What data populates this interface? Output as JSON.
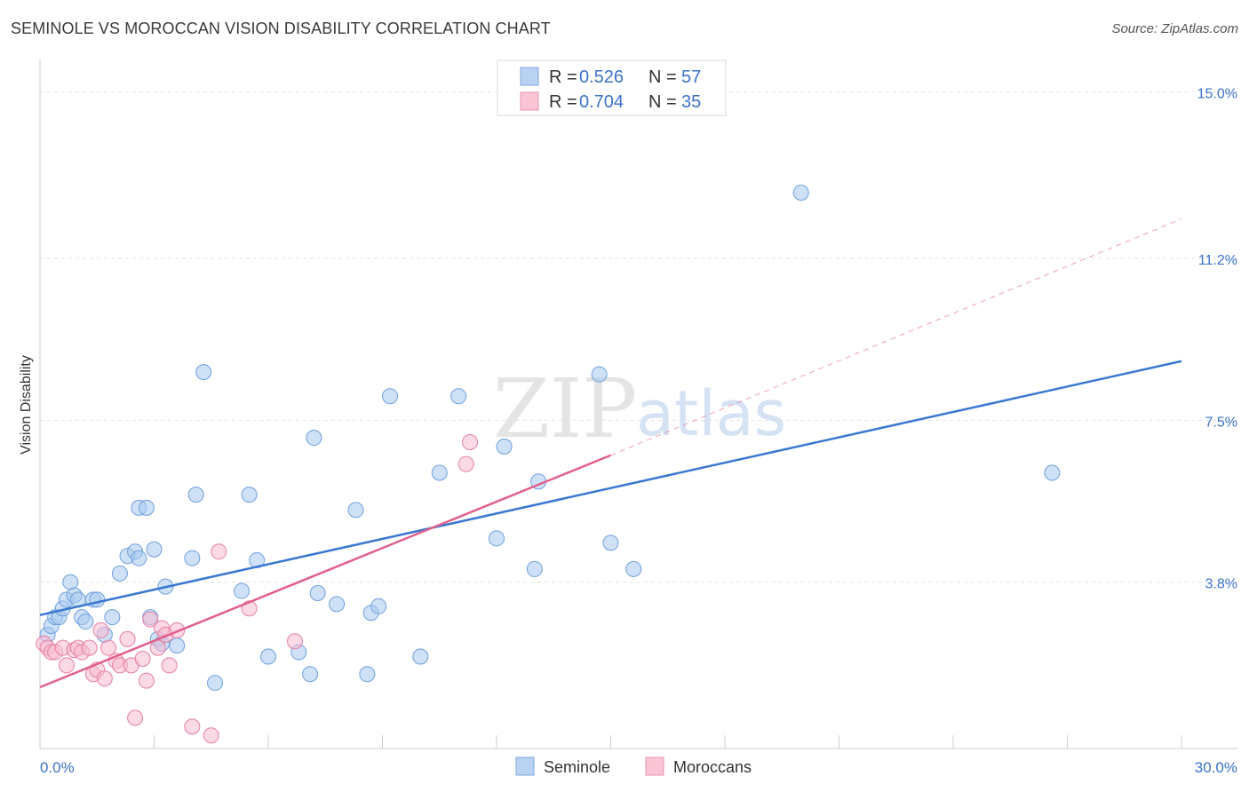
{
  "title": "SEMINOLE VS MOROCCAN VISION DISABILITY CORRELATION CHART",
  "source": "Source: ZipAtlas.com",
  "watermark": {
    "zip": "ZIP",
    "atlas": "atlas"
  },
  "chart_data": {
    "type": "scatter",
    "ylabel": "Vision Disability",
    "xlim": [
      0,
      30
    ],
    "ylim": [
      0,
      15.5
    ],
    "x_tick_labels": {
      "min": "0.0%",
      "max": "30.0%"
    },
    "y_ticks": [
      {
        "value": 3.8,
        "label": "3.8%"
      },
      {
        "value": 7.5,
        "label": "7.5%"
      },
      {
        "value": 11.2,
        "label": "11.2%"
      },
      {
        "value": 15.0,
        "label": "15.0%"
      }
    ],
    "legend": [
      {
        "r_label": "R = ",
        "r_value": "0.526",
        "n_label": "N = ",
        "n_value": "57"
      },
      {
        "r_label": "R = ",
        "r_value": "0.704",
        "n_label": "N = ",
        "n_value": "35"
      }
    ],
    "series": [
      {
        "name": "Seminole",
        "color": "#a8c8f0",
        "stroke": "#6e9fdb",
        "line_color": "#3a78d0",
        "trend": {
          "x0": 0.0,
          "y0": 3.05,
          "x1": 30.0,
          "y1": 8.85
        },
        "points": [
          [
            0.2,
            2.6
          ],
          [
            0.3,
            2.8
          ],
          [
            0.4,
            3.0
          ],
          [
            0.5,
            3.0
          ],
          [
            0.6,
            3.2
          ],
          [
            0.7,
            3.4
          ],
          [
            0.8,
            3.8
          ],
          [
            0.9,
            3.5
          ],
          [
            1.0,
            3.4
          ],
          [
            1.1,
            3.0
          ],
          [
            1.2,
            2.9
          ],
          [
            1.4,
            3.4
          ],
          [
            1.5,
            3.4
          ],
          [
            1.7,
            2.6
          ],
          [
            1.9,
            3.0
          ],
          [
            2.1,
            4.0
          ],
          [
            2.3,
            4.4
          ],
          [
            2.5,
            4.5
          ],
          [
            2.6,
            4.35
          ],
          [
            2.6,
            5.5
          ],
          [
            2.8,
            5.5
          ],
          [
            2.9,
            3.0
          ],
          [
            3.0,
            4.55
          ],
          [
            3.1,
            2.5
          ],
          [
            3.2,
            2.4
          ],
          [
            3.3,
            3.7
          ],
          [
            3.6,
            2.35
          ],
          [
            4.0,
            4.35
          ],
          [
            4.1,
            5.8
          ],
          [
            4.3,
            8.6
          ],
          [
            4.6,
            1.5
          ],
          [
            5.3,
            3.6
          ],
          [
            5.5,
            5.8
          ],
          [
            5.7,
            4.3
          ],
          [
            6.0,
            2.1
          ],
          [
            6.8,
            2.2
          ],
          [
            7.1,
            1.7
          ],
          [
            7.2,
            7.1
          ],
          [
            7.3,
            3.55
          ],
          [
            7.8,
            3.3
          ],
          [
            8.3,
            5.45
          ],
          [
            8.6,
            1.7
          ],
          [
            8.7,
            3.1
          ],
          [
            8.9,
            3.25
          ],
          [
            9.2,
            8.05
          ],
          [
            10.0,
            2.1
          ],
          [
            10.5,
            6.3
          ],
          [
            11.0,
            8.05
          ],
          [
            12.0,
            4.8
          ],
          [
            12.2,
            6.9
          ],
          [
            13.0,
            4.1
          ],
          [
            13.1,
            6.1
          ],
          [
            14.7,
            8.55
          ],
          [
            15.0,
            4.7
          ],
          [
            15.6,
            4.1
          ],
          [
            20.0,
            12.7
          ],
          [
            26.6,
            6.3
          ]
        ]
      },
      {
        "name": "Moroccans",
        "color": "#f8bcd0",
        "stroke": "#e57fa3",
        "line_color": "#e0608c",
        "trend": {
          "x0": 0.0,
          "y0": 1.4,
          "x1": 15.0,
          "y1": 6.7
        },
        "trend_ext": {
          "x0": 15.0,
          "y0": 6.7,
          "x1": 30.0,
          "y1": 12.1
        },
        "points": [
          [
            0.1,
            2.4
          ],
          [
            0.2,
            2.3
          ],
          [
            0.3,
            2.2
          ],
          [
            0.4,
            2.2
          ],
          [
            0.6,
            2.3
          ],
          [
            0.7,
            1.9
          ],
          [
            0.9,
            2.25
          ],
          [
            1.0,
            2.3
          ],
          [
            1.1,
            2.2
          ],
          [
            1.3,
            2.3
          ],
          [
            1.4,
            1.7
          ],
          [
            1.5,
            1.8
          ],
          [
            1.6,
            2.7
          ],
          [
            1.7,
            1.6
          ],
          [
            1.8,
            2.3
          ],
          [
            2.0,
            2.0
          ],
          [
            2.1,
            1.9
          ],
          [
            2.3,
            2.5
          ],
          [
            2.4,
            1.9
          ],
          [
            2.5,
            0.7
          ],
          [
            2.7,
            2.05
          ],
          [
            2.8,
            1.55
          ],
          [
            2.9,
            2.95
          ],
          [
            3.1,
            2.3
          ],
          [
            3.2,
            2.75
          ],
          [
            3.3,
            2.6
          ],
          [
            3.4,
            1.9
          ],
          [
            3.6,
            2.7
          ],
          [
            4.0,
            0.5
          ],
          [
            4.5,
            0.3
          ],
          [
            4.7,
            4.5
          ],
          [
            5.5,
            3.2
          ],
          [
            6.7,
            2.45
          ],
          [
            11.3,
            7.0
          ],
          [
            11.2,
            6.5
          ]
        ]
      }
    ]
  }
}
